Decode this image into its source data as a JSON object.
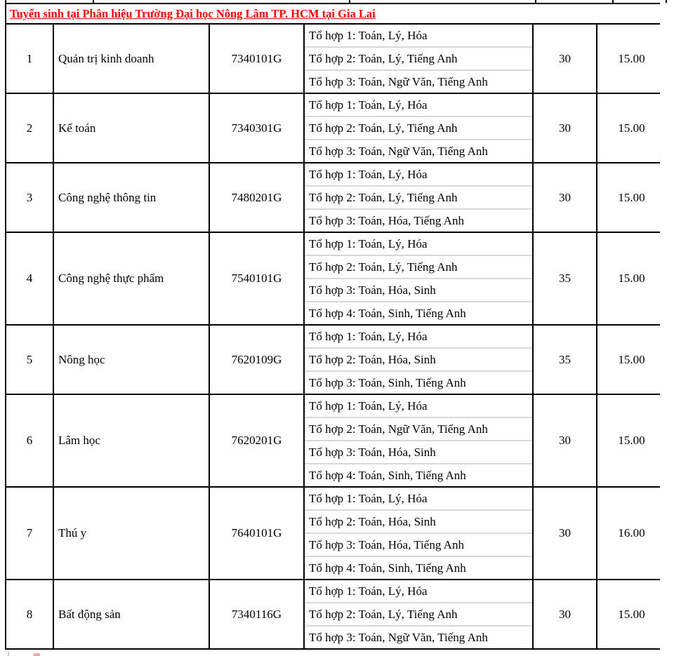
{
  "page": {
    "title": "Tuyển sinh tại Phân hiệu Trường Đại học Nông Lâm TP. HCM tại Gia Lai"
  },
  "colors": {
    "title_text": "#ff0000",
    "grid_border": "#000000",
    "combo_divider": "#d9d9d9",
    "body_text": "#000000"
  },
  "table": {
    "rows": [
      {
        "no": "1",
        "major": "Quản trị kinh doanh",
        "code": "7340101G",
        "combos": [
          "Tổ hợp 1: Toán, Lý, Hóa",
          "Tổ hợp 2: Toán, Lý, Tiếng Anh",
          "Tổ hợp 3: Toán, Ngữ Văn, Tiếng Anh"
        ],
        "quota": "30",
        "score": "15.00"
      },
      {
        "no": "2",
        "major": "Kế toán",
        "code": "7340301G",
        "combos": [
          "Tổ hợp 1: Toán, Lý, Hóa",
          "Tổ hợp 2: Toán, Lý, Tiếng Anh",
          "Tổ hợp 3: Toán, Ngữ Văn, Tiếng Anh"
        ],
        "quota": "30",
        "score": "15.00"
      },
      {
        "no": "3",
        "major": "Công nghệ thông tin",
        "code": "7480201G",
        "combos": [
          "Tổ hợp 1: Toán, Lý, Hóa",
          "Tổ hợp 2: Toán, Lý, Tiếng Anh",
          "Tổ hợp 3: Toán, Hóa, Tiếng Anh"
        ],
        "quota": "30",
        "score": "15.00"
      },
      {
        "no": "4",
        "major": "Công nghệ thực phẩm",
        "code": "7540101G",
        "combos": [
          "Tổ hợp 1: Toán, Lý, Hóa",
          "Tổ hợp 2: Toán, Lý, Tiếng Anh",
          "Tổ hợp 3: Toán, Hóa, Sinh",
          "Tổ hợp 4: Toán, Sinh, Tiếng Anh"
        ],
        "quota": "35",
        "score": "15.00"
      },
      {
        "no": "5",
        "major": "Nông học",
        "code": "7620109G",
        "combos": [
          "Tổ hợp 1: Toán, Lý, Hóa",
          "Tổ hợp 2: Toán, Hóa, Sinh",
          "Tổ hợp 3: Toán, Sinh, Tiếng Anh"
        ],
        "quota": "35",
        "score": "15.00"
      },
      {
        "no": "6",
        "major": "Lâm học",
        "code": "7620201G",
        "combos": [
          "Tổ hợp 1: Toán, Lý, Hóa",
          "Tổ hợp 2: Toán, Ngữ Văn, Tiếng Anh",
          "Tổ hợp 3: Toán, Hóa, Sinh",
          "Tổ hợp 4: Toán, Sinh, Tiếng Anh"
        ],
        "quota": "30",
        "score": "15.00"
      },
      {
        "no": "7",
        "major": "Thú y",
        "code": "7640101G",
        "combos": [
          "Tổ hợp 1: Toán, Lý, Hóa",
          "Tổ hợp 2: Toán, Hóa, Sinh",
          "Tổ hợp 3: Toán, Hóa, Tiếng Anh",
          "Tổ hợp 4: Toán, Sinh, Tiếng Anh"
        ],
        "quota": "30",
        "score": "16.00"
      },
      {
        "no": "8",
        "major": "Bất động sản",
        "code": "7340116G",
        "combos": [
          "Tổ hợp 1: Toán, Lý, Hóa",
          "Tổ hợp 2: Toán, Lý, Tiếng Anh",
          "Tổ hợp 3: Toán, Ngữ Văn, Tiếng Anh"
        ],
        "quota": "30",
        "score": "15.00"
      }
    ]
  }
}
